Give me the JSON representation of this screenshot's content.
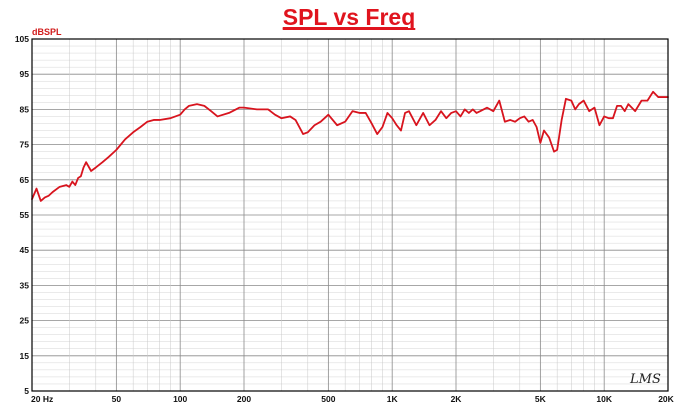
{
  "chart_data": {
    "type": "line",
    "title": "SPL vs Freq",
    "ylabel": "dBSPL",
    "xlabel": "",
    "x_scale": "log",
    "xlim": [
      20,
      20000
    ],
    "ylim": [
      5,
      105
    ],
    "grid": true,
    "y_ticks": [
      "105",
      "95",
      "85",
      "75",
      "65",
      "55",
      "45",
      "35",
      "25",
      "15",
      "5"
    ],
    "x_ticks": [
      {
        "value": 20,
        "label": "20  Hz"
      },
      {
        "value": 50,
        "label": "50"
      },
      {
        "value": 100,
        "label": "100"
      },
      {
        "value": 200,
        "label": "200"
      },
      {
        "value": 500,
        "label": "500"
      },
      {
        "value": 1000,
        "label": "1K"
      },
      {
        "value": 2000,
        "label": "2K"
      },
      {
        "value": 5000,
        "label": "5K"
      },
      {
        "value": 10000,
        "label": "10K"
      },
      {
        "value": 20000,
        "label": "20K"
      }
    ],
    "watermark": "LMS",
    "series": [
      {
        "color": "#d8141e",
        "x": [
          20,
          21,
          22,
          23,
          24,
          25,
          27,
          29,
          30,
          31,
          32,
          33,
          34,
          35,
          36,
          38,
          40,
          43,
          46,
          50,
          55,
          60,
          65,
          70,
          75,
          80,
          90,
          100,
          105,
          110,
          120,
          130,
          140,
          150,
          170,
          190,
          200,
          230,
          260,
          280,
          300,
          330,
          350,
          380,
          400,
          430,
          460,
          500,
          550,
          600,
          650,
          700,
          750,
          800,
          850,
          900,
          950,
          1000,
          1050,
          1100,
          1150,
          1200,
          1300,
          1400,
          1500,
          1600,
          1700,
          1800,
          1900,
          2000,
          2100,
          2200,
          2300,
          2400,
          2500,
          2600,
          2800,
          3000,
          3200,
          3400,
          3600,
          3800,
          4000,
          4200,
          4400,
          4600,
          4800,
          5000,
          5200,
          5500,
          5800,
          6000,
          6300,
          6600,
          7000,
          7300,
          7600,
          8000,
          8500,
          9000,
          9500,
          10000,
          10500,
          11000,
          11500,
          12000,
          12500,
          13000,
          14000,
          15000,
          16000,
          17000,
          18000,
          19000,
          20000
        ],
        "y": [
          59.5,
          62.5,
          59.0,
          60.0,
          60.5,
          61.5,
          63.0,
          63.5,
          63.0,
          64.5,
          63.5,
          65.5,
          66.0,
          68.5,
          70.0,
          67.5,
          68.5,
          70.0,
          71.5,
          73.5,
          76.5,
          78.5,
          80.0,
          81.5,
          82.0,
          82.0,
          82.5,
          83.5,
          85.0,
          86.0,
          86.5,
          86.0,
          84.5,
          83.0,
          84.0,
          85.5,
          85.5,
          85.0,
          85.0,
          83.5,
          82.5,
          83.0,
          82.0,
          78.0,
          78.5,
          80.5,
          81.5,
          83.5,
          80.5,
          81.5,
          84.5,
          84.0,
          84.0,
          81.0,
          78.0,
          80.0,
          84.0,
          82.5,
          80.5,
          79.0,
          84.0,
          84.5,
          80.5,
          84.0,
          80.5,
          82.0,
          84.5,
          82.5,
          84.0,
          84.5,
          83.0,
          85.0,
          84.0,
          85.0,
          84.0,
          84.5,
          85.5,
          84.5,
          87.5,
          81.5,
          82.0,
          81.5,
          82.5,
          83.0,
          81.5,
          82.0,
          80.0,
          75.5,
          79.0,
          77.0,
          73.0,
          73.5,
          82.0,
          88.0,
          87.5,
          85.0,
          86.5,
          87.5,
          84.5,
          85.5,
          80.5,
          83.0,
          82.5,
          82.5,
          86.0,
          86.0,
          84.5,
          86.5,
          84.5,
          87.5,
          87.5,
          90.0,
          88.5,
          88.5,
          88.5
        ]
      }
    ]
  }
}
